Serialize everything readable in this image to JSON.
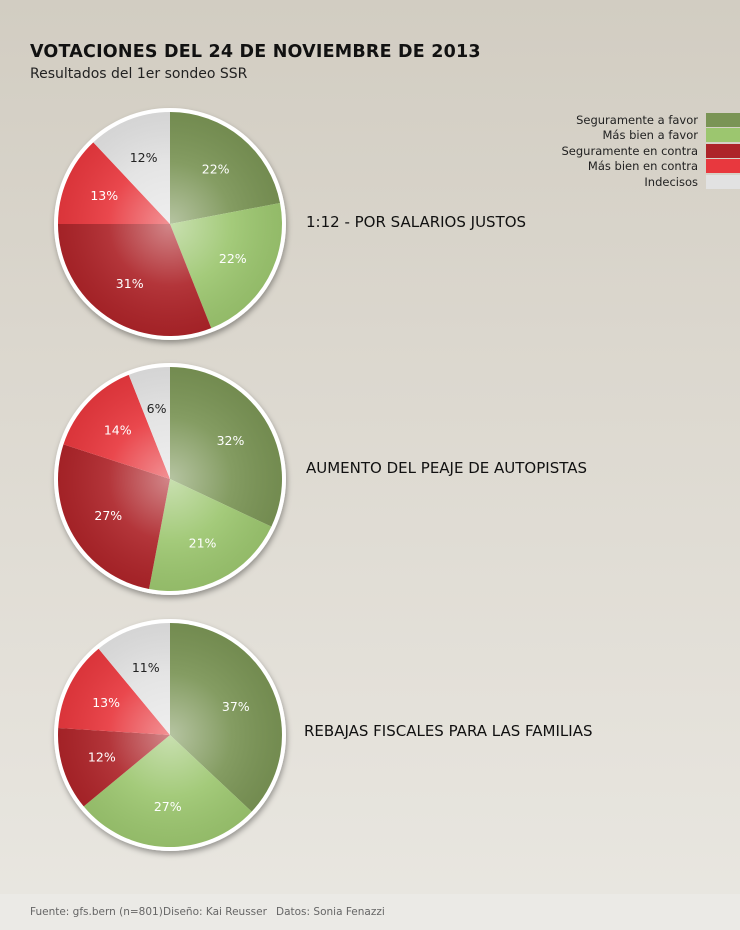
{
  "title": "VOTACIONES DEL 24 DE NOVIEMBRE DE 2013",
  "subtitle": "Resultados del 1er sondeo SSR",
  "colors": {
    "seguramente_a_favor": "#7a9455",
    "mas_bien_a_favor": "#9cc66f",
    "seguramente_en_contra": "#ad2429",
    "mas_bien_en_contra": "#e8383e",
    "indecisos": "#e2e2e2"
  },
  "legend": [
    {
      "label": "Seguramente a favor",
      "color": "#7a9455"
    },
    {
      "label": "Más bien a favor",
      "color": "#9cc66f"
    },
    {
      "label": "Seguramente en contra",
      "color": "#ad2429"
    },
    {
      "label": "Más bien en contra",
      "color": "#e8383e"
    },
    {
      "label": "Indecisos",
      "color": "#e2e2e2"
    }
  ],
  "chart_data": [
    {
      "type": "pie",
      "title": "1:12 - POR SALARIOS JUSTOS",
      "categories": [
        "Seguramente a favor",
        "Más bien a favor",
        "Seguramente en contra",
        "Más bien en contra",
        "Indecisos"
      ],
      "values": [
        22,
        22,
        31,
        13,
        12
      ],
      "labels": [
        "22%",
        "22%",
        "31%",
        "13%",
        "12%"
      ]
    },
    {
      "type": "pie",
      "title": "AUMENTO DEL PEAJE DE AUTOPISTAS",
      "categories": [
        "Seguramente a favor",
        "Más bien a favor",
        "Seguramente en contra",
        "Más bien en contra",
        "Indecisos"
      ],
      "values": [
        32,
        21,
        27,
        14,
        6
      ],
      "labels": [
        "32%",
        "21%",
        "27%",
        "14%",
        "6%"
      ]
    },
    {
      "type": "pie",
      "title": "REBAJAS FISCALES PARA LAS FAMILIAS",
      "categories": [
        "Seguramente a favor",
        "Más bien a favor",
        "Seguramente en contra",
        "Más bien en contra",
        "Indecisos"
      ],
      "values": [
        37,
        27,
        12,
        13,
        11
      ],
      "labels": [
        "37%",
        "27%",
        "12%",
        "13%",
        "11%"
      ]
    }
  ],
  "footer": {
    "source": "Fuente: gfs.bern (n=801)",
    "design": "Diseño: Kai Reusser",
    "data": "Datos: Sonia Fenazzi"
  }
}
